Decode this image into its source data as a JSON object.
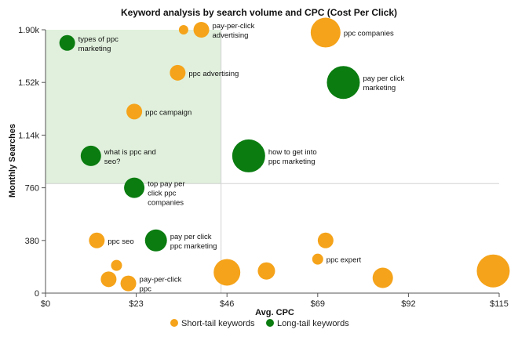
{
  "chart_data": {
    "type": "scatter",
    "title": "Keyword analysis by search volume and CPC (Cost Per Click)",
    "xlabel": "Avg. CPC",
    "ylabel": "Monthly Searches",
    "xlim": [
      0,
      115
    ],
    "ylim": [
      0,
      1900
    ],
    "x_ticks": [
      {
        "value": 0,
        "label": "$0"
      },
      {
        "value": 23,
        "label": "$23"
      },
      {
        "value": 46,
        "label": "$46"
      },
      {
        "value": 69,
        "label": "$69"
      },
      {
        "value": 92,
        "label": "$92"
      },
      {
        "value": 115,
        "label": "$115"
      }
    ],
    "y_ticks": [
      {
        "value": 0,
        "label": "0"
      },
      {
        "value": 380,
        "label": "380"
      },
      {
        "value": 760,
        "label": "760"
      },
      {
        "value": 1140,
        "label": "1.14k"
      },
      {
        "value": 1520,
        "label": "1.52k"
      },
      {
        "value": 1900,
        "label": "1.90k"
      }
    ],
    "highlight_region": {
      "x": [
        0,
        44.5
      ],
      "y": [
        790,
        1900
      ],
      "color": "#e0f0dc"
    },
    "divider_lines": {
      "x": 44.5,
      "y": 790
    },
    "grid": false,
    "legend_position": "bottom",
    "series": [
      {
        "name": "Short-tail keywords",
        "color": "#f5a31a",
        "points": [
          {
            "x": 35,
            "y": 1900,
            "size": 6,
            "label": ""
          },
          {
            "x": 39.5,
            "y": 1900,
            "size": 10,
            "label": "pay-per-click advertising"
          },
          {
            "x": 71,
            "y": 1880,
            "size": 19,
            "label": "ppc companies"
          },
          {
            "x": 33.5,
            "y": 1590,
            "size": 10,
            "label": "ppc advertising"
          },
          {
            "x": 22.5,
            "y": 1310,
            "size": 10,
            "label": "ppc campaign"
          },
          {
            "x": 13,
            "y": 380,
            "size": 10,
            "label": "ppc seo"
          },
          {
            "x": 71,
            "y": 380,
            "size": 10,
            "label": ""
          },
          {
            "x": 69,
            "y": 245,
            "size": 7,
            "label": "ppc expert"
          },
          {
            "x": 18,
            "y": 200,
            "size": 7,
            "label": ""
          },
          {
            "x": 46,
            "y": 150,
            "size": 17,
            "label": ""
          },
          {
            "x": 56,
            "y": 160,
            "size": 11,
            "label": ""
          },
          {
            "x": 113.5,
            "y": 160,
            "size": 21,
            "label": ""
          },
          {
            "x": 16,
            "y": 100,
            "size": 10,
            "label": ""
          },
          {
            "x": 85.5,
            "y": 110,
            "size": 13,
            "label": ""
          },
          {
            "x": 21,
            "y": 70,
            "size": 10,
            "label": "pay-per-click ppc"
          }
        ]
      },
      {
        "name": "Long-tail keywords",
        "color": "#0a7c10",
        "points": [
          {
            "x": 5.5,
            "y": 1805,
            "size": 10,
            "label": "types of ppc marketing"
          },
          {
            "x": 75.5,
            "y": 1520,
            "size": 21,
            "label": "pay per click marketing"
          },
          {
            "x": 11.5,
            "y": 990,
            "size": 13,
            "label": "what is ppc and seo?"
          },
          {
            "x": 51.5,
            "y": 990,
            "size": 21,
            "label": "how to get into ppc marketing"
          },
          {
            "x": 22.5,
            "y": 760,
            "size": 13,
            "label": "top pay per click ppc companies"
          },
          {
            "x": 28,
            "y": 380,
            "size": 14,
            "label": "pay per click ppc marketing"
          }
        ]
      }
    ]
  }
}
